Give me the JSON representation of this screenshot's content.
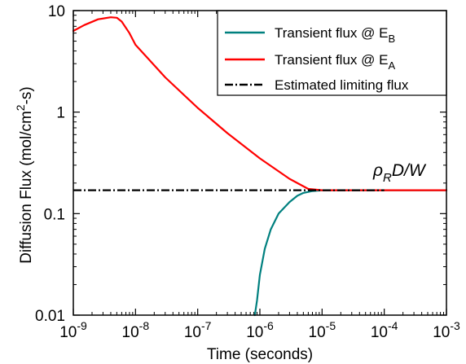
{
  "chart_data": {
    "type": "line",
    "xlabel": "Time (seconds)",
    "ylabel_main": "Diffusion Flux (mol/cm",
    "ylabel_sup": "2",
    "ylabel_tail": "-s)",
    "x_scale": "log",
    "y_scale": "log",
    "xlim": [
      1e-09,
      0.001
    ],
    "ylim": [
      0.01,
      10
    ],
    "x_ticks": [
      {
        "value": 1e-09,
        "base": "10",
        "exp": "-9"
      },
      {
        "value": 1e-08,
        "base": "10",
        "exp": "-8"
      },
      {
        "value": 1e-07,
        "base": "10",
        "exp": "-7"
      },
      {
        "value": 1e-06,
        "base": "10",
        "exp": "-6"
      },
      {
        "value": 1e-05,
        "base": "10",
        "exp": "-5"
      },
      {
        "value": 0.0001,
        "base": "10",
        "exp": "-4"
      },
      {
        "value": 0.001,
        "base": "10",
        "exp": "-3"
      }
    ],
    "y_ticks": [
      {
        "value": 0.01,
        "label": "0.01"
      },
      {
        "value": 0.1,
        "label": "0.1"
      },
      {
        "value": 1,
        "label": "1"
      },
      {
        "value": 10,
        "label": "10"
      }
    ],
    "grid": false,
    "legend_position": "top-right",
    "annotation": {
      "main": "ρ",
      "sub": "R",
      "tail": "D/W"
    },
    "series": [
      {
        "name_main": "Transient flux @ E",
        "name_sub": "B",
        "color": "#00807f",
        "style": "solid",
        "points": [
          [
            8.3e-07,
            0.01
          ],
          [
            9e-07,
            0.014
          ],
          [
            1e-06,
            0.025
          ],
          [
            1.2e-06,
            0.045
          ],
          [
            1.5e-06,
            0.07
          ],
          [
            2e-06,
            0.1
          ],
          [
            3e-06,
            0.13
          ],
          [
            4e-06,
            0.15
          ],
          [
            5e-06,
            0.16
          ],
          [
            7e-06,
            0.167
          ],
          [
            1e-05,
            0.17
          ],
          [
            0.001,
            0.17
          ]
        ]
      },
      {
        "name_main": "Transient flux @ E",
        "name_sub": "A",
        "color": "#ff0000",
        "style": "solid",
        "points": [
          [
            1e-09,
            6.3
          ],
          [
            1.5e-09,
            7.2
          ],
          [
            2.5e-09,
            8.2
          ],
          [
            4e-09,
            8.6
          ],
          [
            5e-09,
            8.5
          ],
          [
            6e-09,
            7.8
          ],
          [
            8e-09,
            6.0
          ],
          [
            1e-08,
            4.6
          ],
          [
            1.5e-08,
            3.5
          ],
          [
            3e-08,
            2.2
          ],
          [
            1e-07,
            1.1
          ],
          [
            3e-07,
            0.62
          ],
          [
            1e-06,
            0.35
          ],
          [
            3e-06,
            0.22
          ],
          [
            6e-06,
            0.175
          ],
          [
            1e-05,
            0.17
          ],
          [
            0.001,
            0.17
          ]
        ]
      },
      {
        "name_main": "Estimated limiting flux",
        "name_sub": "",
        "color": "#000000",
        "style": "dashdot",
        "points": [
          [
            1e-09,
            0.17
          ],
          [
            0.0001,
            0.17
          ]
        ]
      }
    ]
  }
}
